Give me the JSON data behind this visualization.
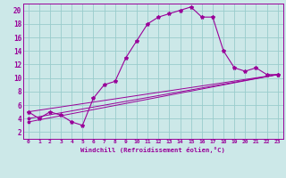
{
  "xlabel": "Windchill (Refroidissement éolien,°C)",
  "background_color": "#cce8e8",
  "line_color": "#990099",
  "grid_color": "#99cccc",
  "xlim": [
    -0.5,
    23.5
  ],
  "ylim": [
    1,
    21
  ],
  "xticks": [
    0,
    1,
    2,
    3,
    4,
    5,
    6,
    7,
    8,
    9,
    10,
    11,
    12,
    13,
    14,
    15,
    16,
    17,
    18,
    19,
    20,
    21,
    22,
    23
  ],
  "yticks": [
    2,
    4,
    6,
    8,
    10,
    12,
    14,
    16,
    18,
    20
  ],
  "main_line": {
    "x": [
      0,
      1,
      2,
      3,
      4,
      5,
      6,
      7,
      8,
      9,
      10,
      11,
      12,
      13,
      14,
      15,
      16,
      17,
      18,
      19,
      20,
      21,
      22,
      23
    ],
    "y": [
      5,
      4,
      5,
      4.5,
      3.5,
      3,
      7,
      9,
      9.5,
      13,
      15.5,
      18,
      19,
      19.5,
      20,
      20.5,
      19,
      19,
      14,
      11.5,
      11,
      11.5,
      10.5,
      10.5
    ]
  },
  "line2": {
    "x": [
      0,
      23
    ],
    "y": [
      5,
      10.5
    ]
  },
  "line3": {
    "x": [
      0,
      23
    ],
    "y": [
      4,
      10.5
    ]
  },
  "line4": {
    "x": [
      0,
      23
    ],
    "y": [
      3.5,
      10.5
    ]
  },
  "figsize": [
    3.2,
    2.0
  ],
  "dpi": 100
}
